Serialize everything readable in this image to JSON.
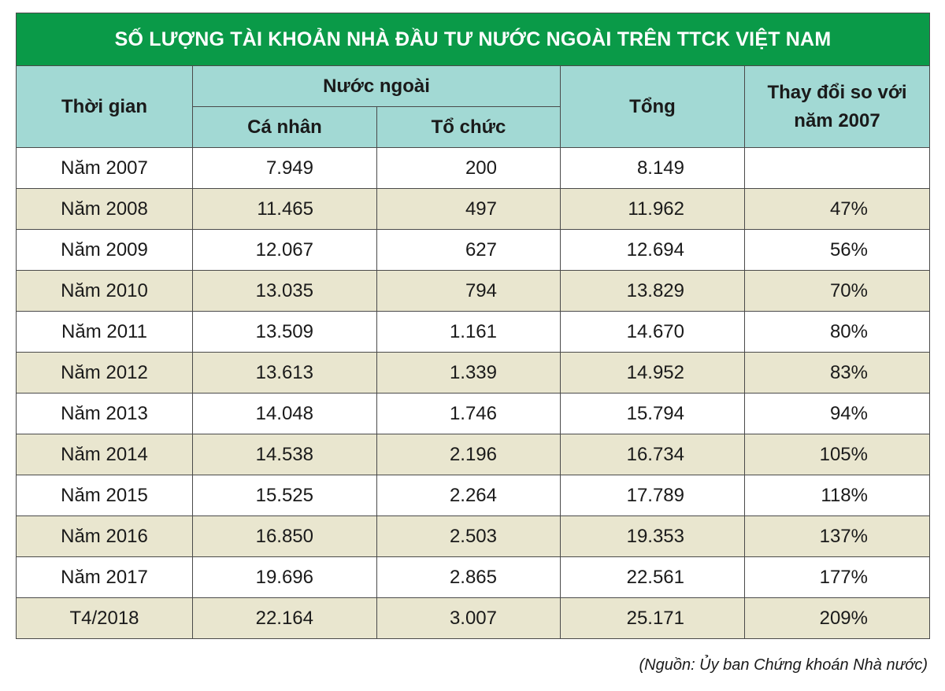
{
  "title": "SỐ LƯỢNG TÀI KHOẢN NHÀ ĐẦU TƯ NƯỚC NGOÀI TRÊN TTCK VIỆT NAM",
  "headers": {
    "time": "Thời gian",
    "foreign": "Nước ngoài",
    "individual": "Cá nhân",
    "institution": "Tổ chức",
    "total": "Tổng",
    "change_line1": "Thay đổi so với",
    "change_line2": "năm 2007"
  },
  "rows": [
    {
      "time": "Năm 2007",
      "individual": "7.949",
      "institution": "200",
      "total": "8.149",
      "change": ""
    },
    {
      "time": "Năm 2008",
      "individual": "11.465",
      "institution": "497",
      "total": "11.962",
      "change": "47%"
    },
    {
      "time": "Năm 2009",
      "individual": "12.067",
      "institution": "627",
      "total": "12.694",
      "change": "56%"
    },
    {
      "time": "Năm 2010",
      "individual": "13.035",
      "institution": "794",
      "total": "13.829",
      "change": "70%"
    },
    {
      "time": "Năm 2011",
      "individual": "13.509",
      "institution": "1.161",
      "total": "14.670",
      "change": "80%"
    },
    {
      "time": "Năm 2012",
      "individual": "13.613",
      "institution": "1.339",
      "total": "14.952",
      "change": "83%"
    },
    {
      "time": "Năm 2013",
      "individual": "14.048",
      "institution": "1.746",
      "total": "15.794",
      "change": "94%"
    },
    {
      "time": "Năm 2014",
      "individual": "14.538",
      "institution": "2.196",
      "total": "16.734",
      "change": "105%"
    },
    {
      "time": "Năm 2015",
      "individual": "15.525",
      "institution": "2.264",
      "total": "17.789",
      "change": "118%"
    },
    {
      "time": "Năm 2016",
      "individual": "16.850",
      "institution": "2.503",
      "total": "19.353",
      "change": "137%"
    },
    {
      "time": "Năm 2017",
      "individual": "19.696",
      "institution": "2.865",
      "total": "22.561",
      "change": "177%"
    },
    {
      "time": "T4/2018",
      "individual": "22.164",
      "institution": "3.007",
      "total": "25.171",
      "change": "209%"
    }
  ],
  "source": "(Nguồn: Ủy ban Chứng khoán Nhà nước)",
  "colors": {
    "title_bg": "#0a9a48",
    "header_bg": "#a2d9d4",
    "stripe_bg": "#e9e6cf"
  }
}
